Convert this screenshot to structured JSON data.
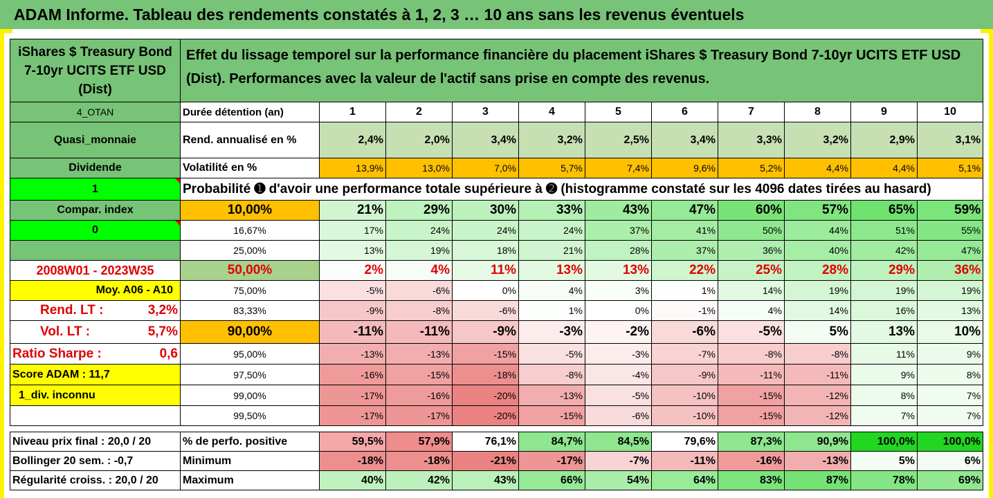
{
  "banner": "ADAM Informe. Tableau des rendements constatés à 1, 2, 3 … 10 ans sans les revenus éventuels",
  "fund_name": "iShares $ Treasury Bond 7-10yr UCITS ETF USD (Dist)",
  "title": "Effet du lissage temporel sur la performance financière du placement iShares $ Treasury Bond 7-10yr UCITS ETF USD (Dist). Performances avec la valeur de l'actif sans prise en compte des revenus.",
  "side": {
    "code": "4_OTAN",
    "cat": "Quasi_monnaie",
    "div": "Dividende",
    "one": "1",
    "compar": "Compar. index",
    "zero": "0",
    "period": "2008W01 - 2023W35",
    "moy": "Moy. A06 - A10",
    "rend_label": "Rend. LT :",
    "rend_val": "3,2%",
    "vol_label": "Vol. LT :",
    "vol_val": "5,7%",
    "sharpe_label": "Ratio Sharpe :",
    "sharpe_val": "0,6",
    "score": "Score ADAM : 11,7",
    "div_unknown": "1_div. inconnu"
  },
  "header": {
    "duration_label": "Durée détention (an)",
    "years": [
      "1",
      "2",
      "3",
      "4",
      "5",
      "6",
      "7",
      "8",
      "9",
      "10"
    ],
    "rend_label": "Rend. annualisé en %",
    "rend": [
      "2,4%",
      "2,0%",
      "3,4%",
      "3,2%",
      "2,5%",
      "3,4%",
      "3,3%",
      "3,2%",
      "2,9%",
      "3,1%"
    ],
    "vol_label": "Volatilité en %",
    "vol": [
      "13,9%",
      "13,0%",
      "7,0%",
      "5,7%",
      "7,4%",
      "9,6%",
      "5,2%",
      "4,4%",
      "4,4%",
      "5,1%"
    ]
  },
  "prob_title": "Probabilité ➊ d'avoir une performance totale supérieure à ➋ (histogramme constaté sur les 4096 dates tirées au hasard)",
  "prob_rows": [
    {
      "p": "10,00%",
      "v": [
        "21%",
        "29%",
        "30%",
        "33%",
        "43%",
        "47%",
        "60%",
        "57%",
        "65%",
        "59%"
      ]
    },
    {
      "p": "16,67%",
      "v": [
        "17%",
        "24%",
        "24%",
        "24%",
        "37%",
        "41%",
        "50%",
        "44%",
        "51%",
        "55%"
      ]
    },
    {
      "p": "25,00%",
      "v": [
        "13%",
        "19%",
        "18%",
        "21%",
        "28%",
        "37%",
        "36%",
        "40%",
        "42%",
        "47%"
      ]
    },
    {
      "p": "50,00%",
      "v": [
        "2%",
        "4%",
        "11%",
        "13%",
        "13%",
        "22%",
        "25%",
        "28%",
        "29%",
        "36%"
      ]
    },
    {
      "p": "75,00%",
      "v": [
        "-5%",
        "-6%",
        "0%",
        "4%",
        "3%",
        "1%",
        "14%",
        "19%",
        "19%",
        "19%"
      ]
    },
    {
      "p": "83,33%",
      "v": [
        "-9%",
        "-8%",
        "-6%",
        "1%",
        "0%",
        "-1%",
        "4%",
        "14%",
        "16%",
        "13%"
      ]
    },
    {
      "p": "90,00%",
      "v": [
        "-11%",
        "-11%",
        "-9%",
        "-3%",
        "-2%",
        "-6%",
        "-5%",
        "5%",
        "13%",
        "10%"
      ]
    },
    {
      "p": "95,00%",
      "v": [
        "-13%",
        "-13%",
        "-15%",
        "-5%",
        "-3%",
        "-7%",
        "-8%",
        "-8%",
        "11%",
        "9%"
      ]
    },
    {
      "p": "97,50%",
      "v": [
        "-16%",
        "-15%",
        "-18%",
        "-8%",
        "-4%",
        "-9%",
        "-11%",
        "-11%",
        "9%",
        "8%"
      ]
    },
    {
      "p": "99,00%",
      "v": [
        "-17%",
        "-16%",
        "-20%",
        "-13%",
        "-5%",
        "-10%",
        "-15%",
        "-12%",
        "8%",
        "7%"
      ]
    },
    {
      "p": "99,50%",
      "v": [
        "-17%",
        "-17%",
        "-20%",
        "-15%",
        "-6%",
        "-10%",
        "-15%",
        "-12%",
        "7%",
        "7%"
      ]
    }
  ],
  "bottom": {
    "rows": [
      {
        "side": "Niveau prix final : 20,0 / 20",
        "label": "% de perfo. positive",
        "v": [
          "59,5%",
          "57,9%",
          "76,1%",
          "84,7%",
          "84,5%",
          "79,6%",
          "87,3%",
          "90,9%",
          "100,0%",
          "100,0%"
        ]
      },
      {
        "side": "Bollinger 20 sem. :  -0,7",
        "label": "Minimum",
        "v": [
          "-18%",
          "-18%",
          "-21%",
          "-17%",
          "-7%",
          "-11%",
          "-16%",
          "-13%",
          "5%",
          "6%"
        ]
      },
      {
        "side": "Régularité croiss. : 20,0 / 20",
        "label": "Maximum",
        "v": [
          "40%",
          "42%",
          "43%",
          "66%",
          "54%",
          "64%",
          "83%",
          "87%",
          "78%",
          "69%"
        ]
      }
    ]
  },
  "colors": {
    "bright_green": "#00ff00",
    "green": "#77c377",
    "light_green": "#c6e0b4",
    "orange": "#ffc000",
    "yellow": "#ffff00",
    "red_text": "#e00000"
  }
}
